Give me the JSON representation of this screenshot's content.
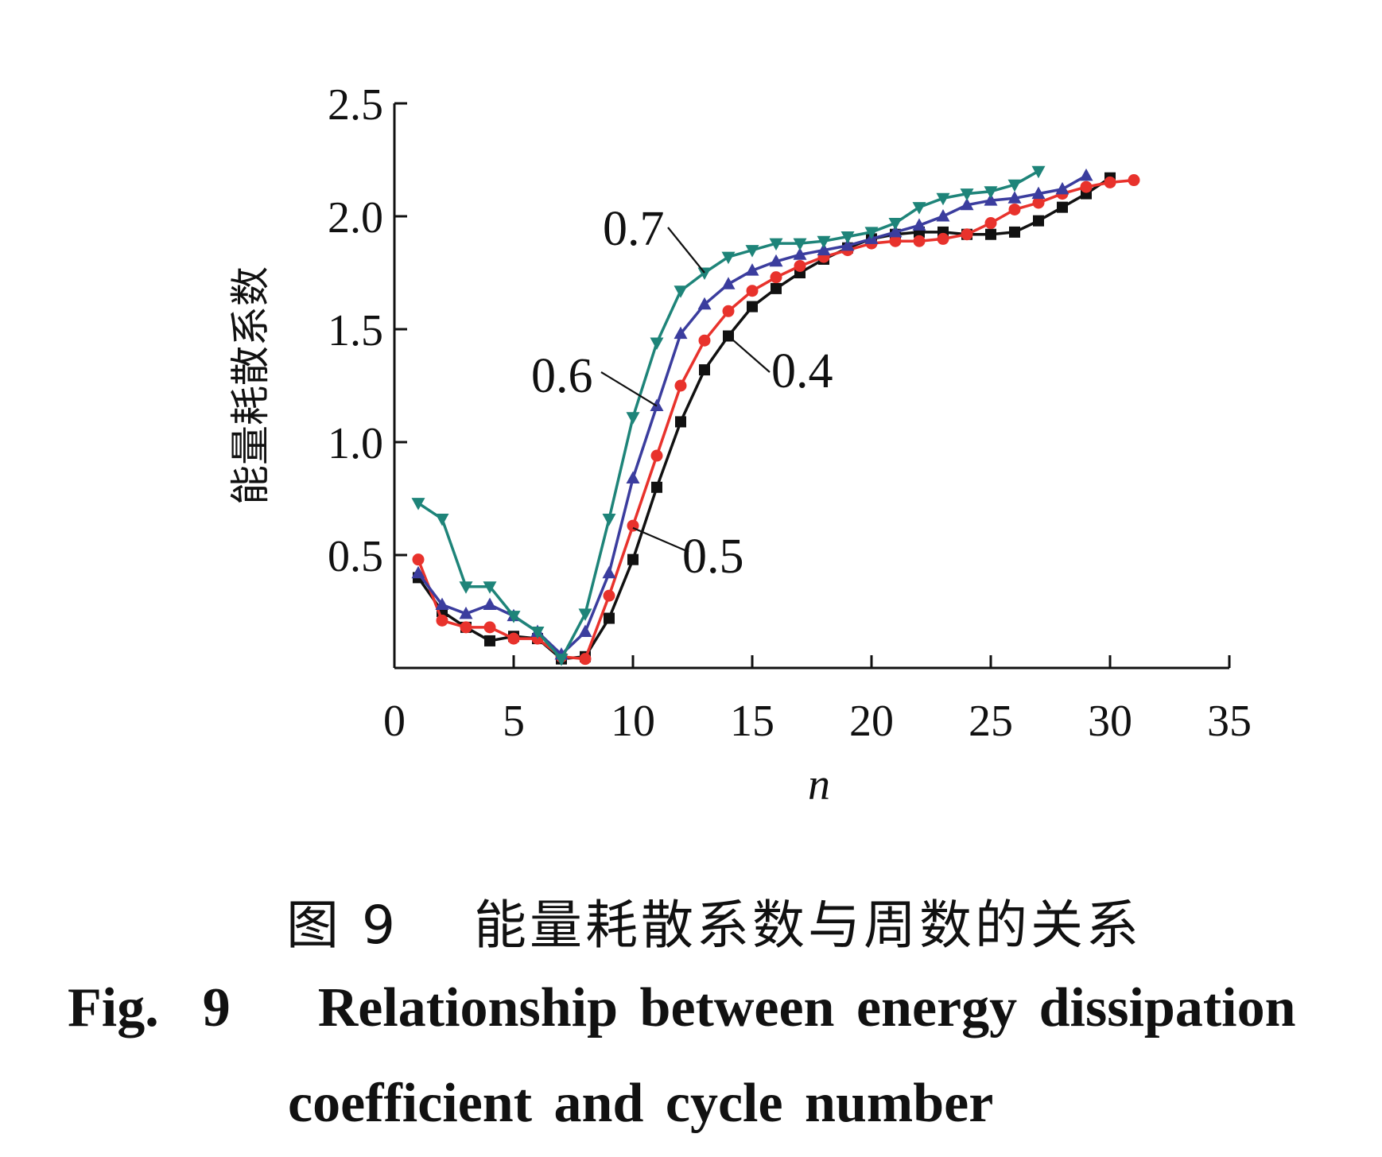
{
  "chart_data": {
    "type": "line",
    "title": "",
    "xlabel": "n",
    "ylabel": "能量耗散系数",
    "xlim": [
      0,
      35
    ],
    "ylim": [
      0,
      2.5
    ],
    "xticks": [
      0,
      5,
      10,
      15,
      20,
      25,
      30,
      35
    ],
    "yticks": [
      0.5,
      1.0,
      1.5,
      2.0,
      2.5
    ],
    "ytick_labels": [
      "0.5",
      "1.0",
      "1.5",
      "2.0",
      "2.5"
    ],
    "grid": false,
    "legend": "none",
    "series": [
      {
        "name": "0.4",
        "color": "#111111",
        "marker": "square",
        "x": [
          1,
          2,
          3,
          4,
          5,
          6,
          7,
          8,
          9,
          10,
          11,
          12,
          13,
          14,
          15,
          16,
          17,
          18,
          19,
          20,
          21,
          22,
          23,
          24,
          25,
          26,
          27,
          28,
          29,
          30
        ],
        "y": [
          0.4,
          0.25,
          0.18,
          0.12,
          0.14,
          0.13,
          0.04,
          0.05,
          0.22,
          0.48,
          0.8,
          1.09,
          1.32,
          1.47,
          1.6,
          1.68,
          1.75,
          1.81,
          1.86,
          1.9,
          1.92,
          1.93,
          1.93,
          1.92,
          1.92,
          1.93,
          1.98,
          2.04,
          2.1,
          2.17
        ]
      },
      {
        "name": "0.5",
        "color": "#e8322c",
        "marker": "circle",
        "x": [
          1,
          2,
          3,
          4,
          5,
          6,
          7,
          8,
          9,
          10,
          11,
          12,
          13,
          14,
          15,
          16,
          17,
          18,
          19,
          20,
          21,
          22,
          23,
          24,
          25,
          26,
          27,
          28,
          29,
          30,
          31
        ],
        "y": [
          0.48,
          0.21,
          0.18,
          0.18,
          0.13,
          0.13,
          0.05,
          0.04,
          0.32,
          0.63,
          0.94,
          1.25,
          1.45,
          1.58,
          1.67,
          1.73,
          1.78,
          1.82,
          1.85,
          1.88,
          1.89,
          1.89,
          1.9,
          1.92,
          1.97,
          2.03,
          2.06,
          2.1,
          2.13,
          2.15,
          2.16
        ]
      },
      {
        "name": "0.6",
        "color": "#3b3d9e",
        "marker": "triangle-up",
        "x": [
          1,
          2,
          3,
          4,
          5,
          6,
          7,
          8,
          9,
          10,
          11,
          12,
          13,
          14,
          15,
          16,
          17,
          18,
          19,
          20,
          21,
          22,
          23,
          24,
          25,
          26,
          27,
          28,
          29
        ],
        "y": [
          0.42,
          0.28,
          0.24,
          0.28,
          0.23,
          0.16,
          0.06,
          0.16,
          0.42,
          0.84,
          1.16,
          1.48,
          1.61,
          1.7,
          1.76,
          1.8,
          1.83,
          1.85,
          1.87,
          1.9,
          1.93,
          1.96,
          2.0,
          2.05,
          2.07,
          2.08,
          2.1,
          2.12,
          2.18
        ]
      },
      {
        "name": "0.7",
        "color": "#1e8479",
        "marker": "triangle-down",
        "x": [
          1,
          2,
          3,
          4,
          5,
          6,
          7,
          8,
          9,
          10,
          11,
          12,
          13,
          14,
          15,
          16,
          17,
          18,
          19,
          20,
          21,
          22,
          23,
          24,
          25,
          26,
          27
        ],
        "y": [
          0.73,
          0.66,
          0.36,
          0.36,
          0.23,
          0.16,
          0.04,
          0.24,
          0.66,
          1.11,
          1.44,
          1.67,
          1.75,
          1.82,
          1.85,
          1.88,
          1.88,
          1.89,
          1.91,
          1.93,
          1.97,
          2.04,
          2.08,
          2.1,
          2.11,
          2.14,
          2.2
        ]
      }
    ],
    "annotations": [
      {
        "text": "0.7",
        "series": "0.7"
      },
      {
        "text": "0.6",
        "series": "0.6"
      },
      {
        "text": "0.4",
        "series": "0.4"
      },
      {
        "text": "0.5",
        "series": "0.5"
      }
    ]
  },
  "caption": {
    "cn": "图 9　 能量耗散系数与周数的关系",
    "en_line1": "Fig.  9    Relationship between energy dissipation",
    "en_line2": "coefficient and cycle number"
  }
}
